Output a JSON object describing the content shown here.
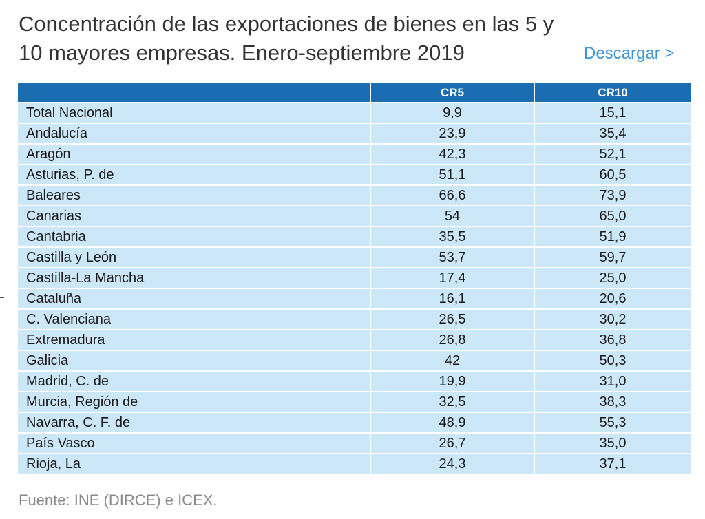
{
  "title": "Concentración de las exportaciones de bienes en las 5 y 10 mayores empresas. Enero-septiembre 2019",
  "download_label": "Descargar >",
  "table": {
    "headers": [
      "",
      "CR5",
      "CR10"
    ],
    "rows": [
      [
        "Total Nacional",
        "9,9",
        "15,1"
      ],
      [
        "Andalucía",
        "23,9",
        "35,4"
      ],
      [
        "Aragón",
        "42,3",
        "52,1"
      ],
      [
        "Asturias, P. de",
        "51,1",
        "60,5"
      ],
      [
        "Baleares",
        "66,6",
        "73,9"
      ],
      [
        "Canarias",
        "54",
        "65,0"
      ],
      [
        "Cantabria",
        "35,5",
        "51,9"
      ],
      [
        "Castilla y León",
        "53,7",
        "59,7"
      ],
      [
        "Castilla-La Mancha",
        "17,4",
        "25,0"
      ],
      [
        "Cataluña",
        "16,1",
        "20,6"
      ],
      [
        "C. Valenciana",
        "26,5",
        "30,2"
      ],
      [
        "Extremadura",
        "26,8",
        "36,8"
      ],
      [
        "Galicia",
        "42",
        "50,3"
      ],
      [
        "Madrid, C. de",
        "19,9",
        "31,0"
      ],
      [
        "Murcia, Región de",
        "32,5",
        "38,3"
      ],
      [
        "Navarra, C. F. de",
        "48,9",
        "55,3"
      ],
      [
        "País Vasco",
        "26,7",
        "35,0"
      ],
      [
        "Rioja, La",
        "24,3",
        "37,1"
      ]
    ]
  },
  "source": "Fuente: INE (DIRCE) e ICEX.",
  "colors": {
    "header_bg": "#1b6db2",
    "row_bg": "#cbe7f8",
    "link": "#3d94d6",
    "title": "#333333",
    "source": "#8a8a8a"
  }
}
